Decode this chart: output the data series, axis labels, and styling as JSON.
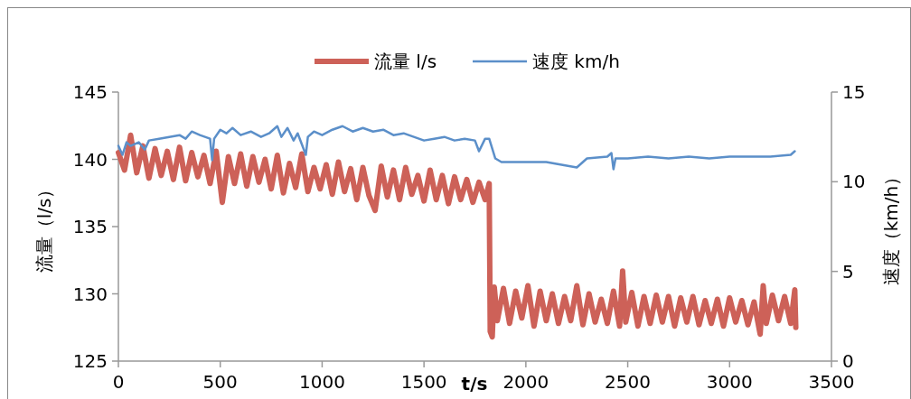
{
  "chart_data": {
    "type": "line",
    "xlabel": "t/s",
    "ylabel": "流量（l/s）",
    "y2label": "速度（km/h）",
    "xlim": [
      0,
      3500
    ],
    "xticks": [
      0,
      500,
      1000,
      1500,
      2000,
      2500,
      3000,
      3500
    ],
    "ylim": [
      125,
      145
    ],
    "yticks": [
      125,
      130,
      135,
      140,
      145
    ],
    "y2lim": [
      0,
      15
    ],
    "y2ticks": [
      0,
      5,
      10,
      15
    ],
    "grid": false,
    "legend": "top",
    "marker": "none",
    "line_style": "solid",
    "series": [
      {
        "name": "流量 l/s",
        "color": "#cd6158",
        "x": [
          0,
          30,
          60,
          90,
          120,
          150,
          180,
          210,
          240,
          270,
          300,
          330,
          360,
          390,
          420,
          450,
          480,
          510,
          540,
          570,
          600,
          630,
          660,
          690,
          720,
          750,
          780,
          810,
          840,
          870,
          900,
          930,
          960,
          990,
          1020,
          1050,
          1080,
          1110,
          1140,
          1170,
          1200,
          1230,
          1260,
          1290,
          1320,
          1350,
          1380,
          1410,
          1440,
          1470,
          1500,
          1530,
          1560,
          1590,
          1620,
          1650,
          1680,
          1710,
          1740,
          1770,
          1800,
          1820,
          1825,
          1835,
          1845,
          1860,
          1890,
          1920,
          1950,
          1980,
          2010,
          2040,
          2070,
          2100,
          2130,
          2160,
          2190,
          2220,
          2250,
          2280,
          2310,
          2340,
          2370,
          2400,
          2430,
          2460,
          2475,
          2490,
          2520,
          2550,
          2580,
          2610,
          2640,
          2670,
          2700,
          2730,
          2760,
          2790,
          2820,
          2850,
          2880,
          2910,
          2940,
          2970,
          3000,
          3030,
          3060,
          3090,
          3120,
          3150,
          3165,
          3180,
          3210,
          3240,
          3270,
          3300,
          3320,
          3325
        ],
        "values": [
          140.5,
          139.2,
          141.8,
          139,
          141,
          138.6,
          140.8,
          138.8,
          140.6,
          138.5,
          140.9,
          138.4,
          140.5,
          138.7,
          140.3,
          138.2,
          140.6,
          136.8,
          140.2,
          138.2,
          140.4,
          138,
          140.2,
          138.3,
          140,
          137.8,
          140.3,
          137.5,
          139.7,
          137.9,
          140.4,
          137.6,
          139.4,
          137.8,
          139.6,
          137.4,
          139.8,
          137.6,
          139.3,
          137,
          139.4,
          137.3,
          136.2,
          139.5,
          137.2,
          139.2,
          137,
          139.4,
          137.4,
          138.8,
          136.9,
          139.2,
          137,
          138.8,
          136.7,
          138.7,
          137,
          138.5,
          136.8,
          138.3,
          137,
          138.2,
          127.2,
          126.8,
          130.5,
          128,
          130.4,
          127.8,
          130.2,
          128.2,
          130.6,
          127.6,
          130.2,
          128,
          130,
          127.8,
          129.8,
          128,
          130.6,
          127.7,
          130,
          127.9,
          129.6,
          127.8,
          130.2,
          127.6,
          131.7,
          127.9,
          130.1,
          127.6,
          129.8,
          127.8,
          129.9,
          127.9,
          129.8,
          127.6,
          129.7,
          127.9,
          129.8,
          127.7,
          129.5,
          127.8,
          129.6,
          127.6,
          129.7,
          127.9,
          129.5,
          127.7,
          129.4,
          127,
          130.6,
          127.8,
          129.9,
          128,
          129.8,
          127.8,
          130.3,
          127.5
        ]
      },
      {
        "name": "速度 km/h",
        "color": "#5b8fc9",
        "axis": "y2",
        "x": [
          0,
          20,
          40,
          60,
          100,
          130,
          150,
          200,
          250,
          300,
          330,
          360,
          400,
          450,
          460,
          470,
          500,
          530,
          560,
          600,
          650,
          700,
          740,
          780,
          800,
          830,
          860,
          880,
          920,
          930,
          960,
          1000,
          1050,
          1100,
          1150,
          1200,
          1250,
          1300,
          1350,
          1400,
          1450,
          1500,
          1550,
          1600,
          1650,
          1700,
          1750,
          1770,
          1800,
          1820,
          1850,
          1880,
          2000,
          2100,
          2150,
          2200,
          2250,
          2280,
          2300,
          2400,
          2420,
          2430,
          2440,
          2500,
          2600,
          2700,
          2800,
          2900,
          3000,
          3100,
          3200,
          3300,
          3320
        ],
        "values": [
          12,
          11.5,
          12.2,
          12,
          12.2,
          11.8,
          12.3,
          12.4,
          12.5,
          12.6,
          12.4,
          12.8,
          12.6,
          12.4,
          11.2,
          12.4,
          12.9,
          12.7,
          13,
          12.6,
          12.8,
          12.5,
          12.7,
          13.1,
          12.5,
          13,
          12.3,
          12.7,
          11.5,
          12.5,
          12.8,
          12.6,
          12.9,
          13.1,
          12.8,
          13,
          12.8,
          12.9,
          12.6,
          12.7,
          12.5,
          12.3,
          12.4,
          12.5,
          12.3,
          12.4,
          12.3,
          11.7,
          12.4,
          12.4,
          11.3,
          11.1,
          11.1,
          11.1,
          11,
          10.9,
          10.8,
          11.1,
          11.3,
          11.4,
          11.6,
          10.7,
          11.3,
          11.3,
          11.4,
          11.3,
          11.4,
          11.3,
          11.4,
          11.4,
          11.4,
          11.5,
          11.7
        ]
      }
    ]
  }
}
